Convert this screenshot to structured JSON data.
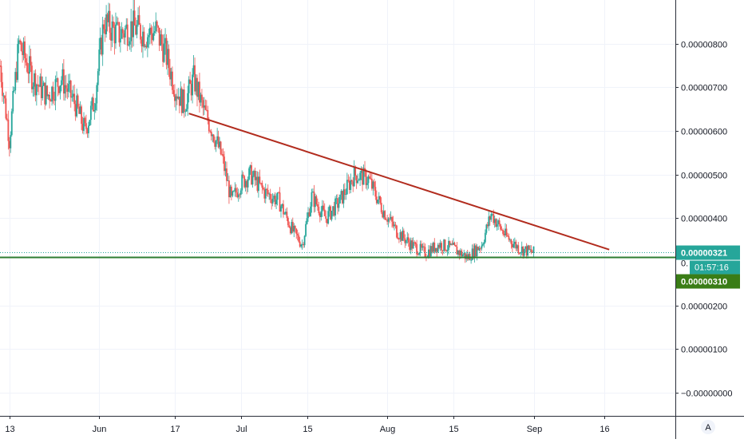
{
  "chart_data": {
    "type": "candlestick",
    "y_axis": {
      "ticks": [
        "0.00000800",
        "0.00000700",
        "0.00000600",
        "0.00000500",
        "0.00000400",
        "0.00000200",
        "0.00000100",
        "−0.00000000"
      ],
      "tick_values": [
        8e-06,
        7e-06,
        6e-06,
        5e-06,
        4e-06,
        2e-06,
        1e-06,
        0
      ],
      "range": [
        -5.3e-07,
        9e-06
      ]
    },
    "x_axis": {
      "ticks": [
        "13",
        "Jun",
        "17",
        "Jul",
        "15",
        "Aug",
        "15",
        "Sep",
        "16"
      ],
      "tick_dates": [
        "2020-05-13",
        "2020-06-01",
        "2020-06-17",
        "2020-07-01",
        "2020-07-15",
        "2020-08-01",
        "2020-08-15",
        "2020-09-01",
        "2020-09-16"
      ],
      "range": [
        "2020-05-11",
        "2020-10-01"
      ]
    },
    "series_close": [
      [
        "2020-05-11",
        7.5e-06
      ],
      [
        "2020-05-13",
        5.8e-06
      ],
      [
        "2020-05-15",
        8e-06
      ],
      [
        "2020-05-18",
        7.2e-06
      ],
      [
        "2020-05-21",
        6.8e-06
      ],
      [
        "2020-05-24",
        7.2e-06
      ],
      [
        "2020-05-27",
        6.6e-06
      ],
      [
        "2020-05-29",
        6e-06
      ],
      [
        "2020-05-31",
        6.7e-06
      ],
      [
        "2020-06-02",
        8.5e-06
      ],
      [
        "2020-06-05",
        8.2e-06
      ],
      [
        "2020-06-08",
        8.4e-06
      ],
      [
        "2020-06-11",
        8.2e-06
      ],
      [
        "2020-06-13",
        8.3e-06
      ],
      [
        "2020-06-15",
        7.8e-06
      ],
      [
        "2020-06-17",
        7e-06
      ],
      [
        "2020-06-19",
        6.6e-06
      ],
      [
        "2020-06-21",
        7.2e-06
      ],
      [
        "2020-06-23",
        6.5e-06
      ],
      [
        "2020-06-25",
        6e-06
      ],
      [
        "2020-06-27",
        5.4e-06
      ],
      [
        "2020-06-29",
        4.4e-06
      ],
      [
        "2020-07-01",
        4.8e-06
      ],
      [
        "2020-07-03",
        5e-06
      ],
      [
        "2020-07-06",
        4.6e-06
      ],
      [
        "2020-07-09",
        4.4e-06
      ],
      [
        "2020-07-12",
        3.7e-06
      ],
      [
        "2020-07-14",
        3.4e-06
      ],
      [
        "2020-07-16",
        4.5e-06
      ],
      [
        "2020-07-19",
        4e-06
      ],
      [
        "2020-07-22",
        4.4e-06
      ],
      [
        "2020-07-25",
        5e-06
      ],
      [
        "2020-07-28",
        4.9e-06
      ],
      [
        "2020-07-31",
        4.2e-06
      ],
      [
        "2020-08-03",
        3.7e-06
      ],
      [
        "2020-08-06",
        3.4e-06
      ],
      [
        "2020-08-09",
        3.2e-06
      ],
      [
        "2020-08-12",
        3.4e-06
      ],
      [
        "2020-08-15",
        3.3e-06
      ],
      [
        "2020-08-18",
        3.1e-06
      ],
      [
        "2020-08-21",
        3.4e-06
      ],
      [
        "2020-08-23",
        4.1e-06
      ],
      [
        "2020-08-26",
        3.6e-06
      ],
      [
        "2020-08-29",
        3.3e-06
      ],
      [
        "2020-09-01",
        3.21e-06
      ]
    ],
    "trendlines": [
      {
        "from": [
          "2020-06-20",
          6.4e-06
        ],
        "to": [
          "2020-09-17",
          3.28e-06
        ],
        "color": "#b22c1e"
      }
    ],
    "horizontal_lines": [
      {
        "value": 3.1e-06,
        "color": "#2e7d32"
      }
    ],
    "last_price": {
      "value": 3.21e-06,
      "label": "0.00000321",
      "countdown": "01:57:16",
      "color": "#26a69a"
    },
    "level_label": {
      "value": 3.1e-06,
      "label": "0.00000310",
      "color": "#3a7d16"
    },
    "colors": {
      "up": "#26a69a",
      "down": "#ef5350",
      "grid": "#f0f3fa",
      "axis_text": "#131722"
    },
    "grid": true,
    "price_scale_mode": "A"
  }
}
